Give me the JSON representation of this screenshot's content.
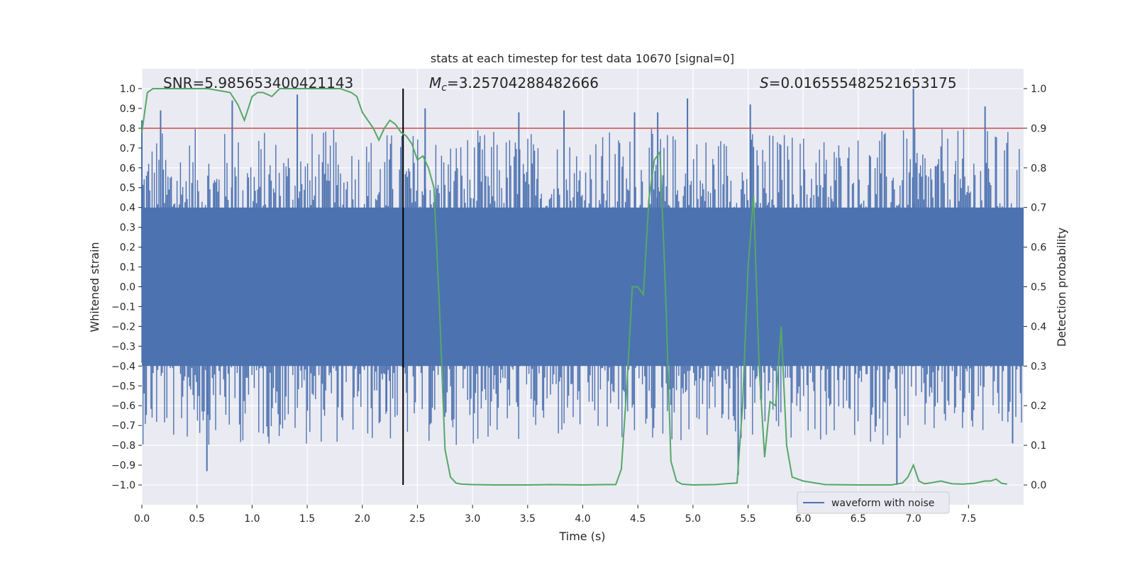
{
  "chart_data": {
    "type": "line",
    "title": "stats at each timestep for test data 10670 [signal=0]",
    "xlabel": "Time (s)",
    "ylabel_left": "Whitened strain",
    "ylabel_right": "Detection probability",
    "xlim": [
      0.0,
      8.0
    ],
    "ylim_left": [
      -1.1,
      1.1
    ],
    "ylim_right": [
      -0.05,
      1.05
    ],
    "x_ticks": [
      "0.0",
      "0.5",
      "1.0",
      "1.5",
      "2.0",
      "2.5",
      "3.0",
      "3.5",
      "4.0",
      "4.5",
      "5.0",
      "5.5",
      "6.0",
      "6.5",
      "7.0",
      "7.5"
    ],
    "y_left_ticks": [
      "1.0",
      "0.9",
      "0.8",
      "0.7",
      "0.6",
      "0.5",
      "0.4",
      "0.3",
      "0.2",
      "0.1",
      "0.0",
      "−0.1",
      "−0.2",
      "−0.3",
      "−0.4",
      "−0.5",
      "−0.6",
      "−0.7",
      "−0.8",
      "−0.9",
      "−1.0"
    ],
    "y_right_ticks": [
      "1.0",
      "0.9",
      "0.8",
      "0.7",
      "0.6",
      "0.5",
      "0.4",
      "0.3",
      "0.2",
      "0.1",
      "0.0"
    ],
    "grid": true,
    "legend": {
      "entries": [
        "waveform with noise"
      ],
      "placement": "lower-right"
    },
    "annotations": {
      "snr": "SNR=5.985653400421143",
      "mc_symbol": "M",
      "mc_subscript": "c",
      "mc_value": "=3.25704288482666",
      "s_symbol": "S",
      "s_value": "=0.016555482521653175"
    },
    "threshold": {
      "value": 0.8,
      "axis": "left",
      "color": "#c44e52"
    },
    "marker_time": 2.37,
    "colors": {
      "waveform": "#4c72b0",
      "probability": "#55a868",
      "threshold": "#c44e52",
      "marker": "#000000",
      "background": "#eaeaf2"
    },
    "series": [
      {
        "name": "waveform with noise",
        "axis": "left",
        "note": "whitened strain noise, roughly uniform band; notable spikes",
        "x": [
          0.0,
          0.17,
          0.59,
          0.82,
          1.41,
          2.22,
          2.57,
          3.42,
          3.83,
          4.47,
          4.68,
          4.95,
          5.41,
          5.52,
          6.85,
          7.0,
          7.65,
          7.9
        ],
        "y": [
          0.84,
          0.89,
          -0.93,
          0.94,
          0.97,
          -0.63,
          0.9,
          0.88,
          0.89,
          0.88,
          0.88,
          0.95,
          -0.95,
          0.92,
          -1.0,
          1.0,
          0.91,
          -0.79
        ],
        "band": [
          -0.4,
          0.4
        ]
      },
      {
        "name": "",
        "axis": "right",
        "x": [
          0.0,
          0.05,
          0.1,
          0.2,
          0.4,
          0.6,
          0.8,
          0.87,
          0.93,
          1.0,
          1.05,
          1.1,
          1.18,
          1.25,
          1.4,
          1.6,
          1.8,
          1.9,
          1.95,
          2.0,
          2.05,
          2.1,
          2.15,
          2.2,
          2.25,
          2.3,
          2.35,
          2.4,
          2.45,
          2.5,
          2.55,
          2.6,
          2.65,
          2.7,
          2.75,
          2.8,
          2.85,
          2.9,
          3.0,
          3.2,
          3.5,
          3.7,
          4.0,
          4.2,
          4.3,
          4.35,
          4.4,
          4.45,
          4.5,
          4.55,
          4.6,
          4.65,
          4.7,
          4.75,
          4.8,
          4.85,
          4.9,
          5.0,
          5.2,
          5.4,
          5.45,
          5.5,
          5.55,
          5.6,
          5.65,
          5.7,
          5.75,
          5.8,
          5.85,
          5.9,
          6.0,
          6.2,
          6.5,
          6.8,
          6.9,
          6.95,
          7.0,
          7.05,
          7.1,
          7.15,
          7.25,
          7.35,
          7.45,
          7.55,
          7.65,
          7.7,
          7.75,
          7.8,
          7.85
        ],
        "y": [
          0.89,
          0.99,
          1.0,
          1.0,
          1.0,
          1.0,
          0.99,
          0.96,
          0.92,
          0.98,
          0.99,
          0.99,
          0.98,
          1.0,
          1.0,
          1.0,
          1.0,
          0.99,
          0.98,
          0.94,
          0.92,
          0.9,
          0.87,
          0.9,
          0.92,
          0.91,
          0.89,
          0.88,
          0.86,
          0.82,
          0.83,
          0.8,
          0.75,
          0.45,
          0.09,
          0.02,
          0.005,
          0.002,
          0.001,
          0.0,
          0.0,
          0.001,
          0.0,
          0.001,
          0.001,
          0.04,
          0.25,
          0.5,
          0.5,
          0.48,
          0.72,
          0.82,
          0.84,
          0.5,
          0.06,
          0.01,
          0.002,
          0.0,
          0.001,
          0.005,
          0.2,
          0.55,
          0.73,
          0.3,
          0.07,
          0.21,
          0.2,
          0.4,
          0.1,
          0.02,
          0.01,
          0.001,
          0.0,
          0.0,
          0.005,
          0.02,
          0.05,
          0.01,
          0.003,
          0.005,
          0.01,
          0.003,
          0.002,
          0.004,
          0.01,
          0.01,
          0.015,
          0.004,
          0.002
        ]
      }
    ]
  }
}
